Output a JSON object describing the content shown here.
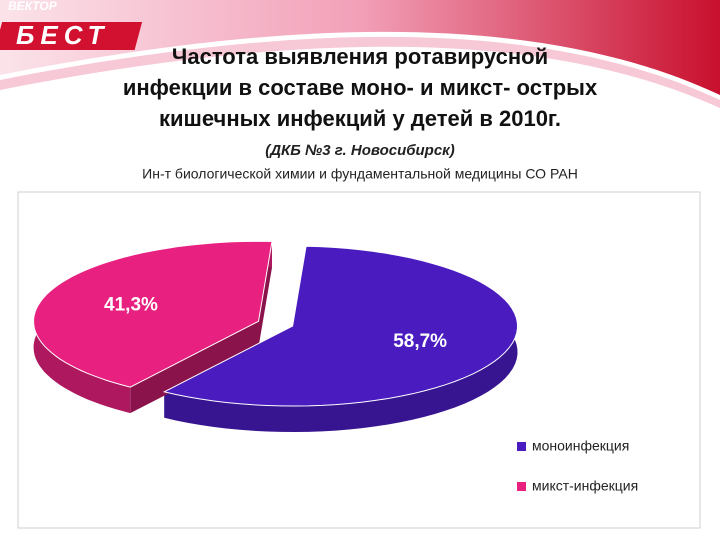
{
  "header": {
    "logo_top": "ВЕКТОР",
    "logo_main": "БЕСТ"
  },
  "chart_data": {
    "type": "pie",
    "title": [
      "Частота выявления ротавирусной",
      "инфекции в составе моно- и микст- острых",
      "кишечных инфекций у детей в 2010г."
    ],
    "subtitle": "(ДКБ №3 г. Новосибирск)",
    "source": "Ин-т биологической химии и фундаментальной медицины СО РАН",
    "categories": [
      "моноинфекция",
      "микст-инфекция"
    ],
    "values": [
      58.7,
      41.3
    ],
    "value_labels": [
      "58,7%",
      "41,3%"
    ],
    "colors": [
      "#4a1cc0",
      "#e8207f"
    ],
    "legend": "right-bottom"
  }
}
